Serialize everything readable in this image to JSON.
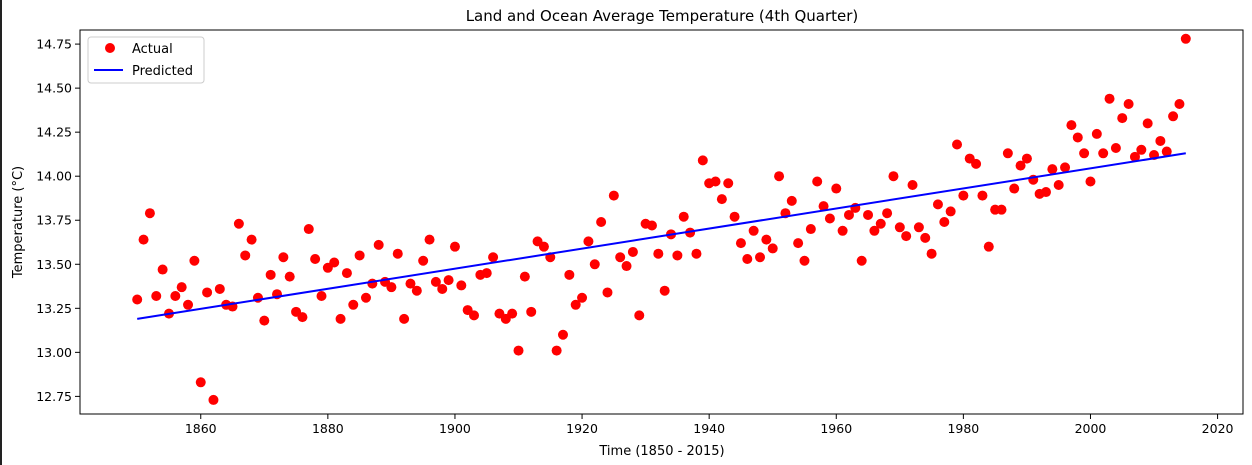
{
  "chart_data": {
    "type": "scatter",
    "title": "Land and Ocean Average Temperature (4th Quarter)",
    "xlabel": "Time (1850 - 2015)",
    "ylabel": "Temperature (°C)",
    "xlim": [
      1841,
      2024
    ],
    "ylim": [
      12.65,
      14.83
    ],
    "xticks": [
      1860,
      1880,
      1900,
      1920,
      1940,
      1960,
      1980,
      2000,
      2020
    ],
    "xtick_labels": [
      "1860",
      "1880",
      "1900",
      "1920",
      "1940",
      "1960",
      "1980",
      "2000",
      "2020"
    ],
    "yticks": [
      12.75,
      13.0,
      13.25,
      13.5,
      13.75,
      14.0,
      14.25,
      14.5,
      14.75
    ],
    "ytick_labels": [
      "12.75",
      "13.00",
      "13.25",
      "13.50",
      "13.75",
      "14.00",
      "14.25",
      "14.50",
      "14.75"
    ],
    "legend": {
      "position": "top-left",
      "entries": [
        "Actual",
        "Predicted"
      ]
    },
    "grid": false,
    "series": [
      {
        "name": "Actual",
        "kind": "scatter",
        "color": "#ff0000",
        "points": [
          [
            1850,
            13.3
          ],
          [
            1851,
            13.64
          ],
          [
            1852,
            13.79
          ],
          [
            1853,
            13.32
          ],
          [
            1854,
            13.47
          ],
          [
            1855,
            13.22
          ],
          [
            1856,
            13.32
          ],
          [
            1857,
            13.37
          ],
          [
            1858,
            13.27
          ],
          [
            1859,
            13.52
          ],
          [
            1860,
            12.83
          ],
          [
            1861,
            13.34
          ],
          [
            1862,
            12.73
          ],
          [
            1863,
            13.36
          ],
          [
            1864,
            13.27
          ],
          [
            1865,
            13.26
          ],
          [
            1866,
            13.73
          ],
          [
            1867,
            13.55
          ],
          [
            1868,
            13.64
          ],
          [
            1869,
            13.31
          ],
          [
            1870,
            13.18
          ],
          [
            1871,
            13.44
          ],
          [
            1872,
            13.33
          ],
          [
            1873,
            13.54
          ],
          [
            1874,
            13.43
          ],
          [
            1875,
            13.23
          ],
          [
            1876,
            13.2
          ],
          [
            1877,
            13.7
          ],
          [
            1878,
            13.53
          ],
          [
            1879,
            13.32
          ],
          [
            1880,
            13.48
          ],
          [
            1881,
            13.51
          ],
          [
            1882,
            13.19
          ],
          [
            1883,
            13.45
          ],
          [
            1884,
            13.27
          ],
          [
            1885,
            13.55
          ],
          [
            1886,
            13.31
          ],
          [
            1887,
            13.39
          ],
          [
            1888,
            13.61
          ],
          [
            1889,
            13.4
          ],
          [
            1890,
            13.37
          ],
          [
            1891,
            13.56
          ],
          [
            1892,
            13.19
          ],
          [
            1893,
            13.39
          ],
          [
            1894,
            13.35
          ],
          [
            1895,
            13.52
          ],
          [
            1896,
            13.64
          ],
          [
            1897,
            13.4
          ],
          [
            1898,
            13.36
          ],
          [
            1899,
            13.41
          ],
          [
            1900,
            13.6
          ],
          [
            1901,
            13.38
          ],
          [
            1902,
            13.24
          ],
          [
            1903,
            13.21
          ],
          [
            1904,
            13.44
          ],
          [
            1905,
            13.45
          ],
          [
            1906,
            13.54
          ],
          [
            1907,
            13.22
          ],
          [
            1908,
            13.19
          ],
          [
            1909,
            13.22
          ],
          [
            1910,
            13.01
          ],
          [
            1911,
            13.43
          ],
          [
            1912,
            13.23
          ],
          [
            1913,
            13.63
          ],
          [
            1914,
            13.6
          ],
          [
            1915,
            13.54
          ],
          [
            1916,
            13.01
          ],
          [
            1917,
            13.1
          ],
          [
            1918,
            13.44
          ],
          [
            1919,
            13.27
          ],
          [
            1920,
            13.31
          ],
          [
            1921,
            13.63
          ],
          [
            1922,
            13.5
          ],
          [
            1923,
            13.74
          ],
          [
            1924,
            13.34
          ],
          [
            1925,
            13.89
          ],
          [
            1926,
            13.54
          ],
          [
            1927,
            13.49
          ],
          [
            1928,
            13.57
          ],
          [
            1929,
            13.21
          ],
          [
            1930,
            13.73
          ],
          [
            1931,
            13.72
          ],
          [
            1932,
            13.56
          ],
          [
            1933,
            13.35
          ],
          [
            1934,
            13.67
          ],
          [
            1935,
            13.55
          ],
          [
            1936,
            13.77
          ],
          [
            1937,
            13.68
          ],
          [
            1938,
            13.56
          ],
          [
            1939,
            14.09
          ],
          [
            1940,
            13.96
          ],
          [
            1941,
            13.97
          ],
          [
            1942,
            13.87
          ],
          [
            1943,
            13.96
          ],
          [
            1944,
            13.77
          ],
          [
            1945,
            13.62
          ],
          [
            1946,
            13.53
          ],
          [
            1947,
            13.69
          ],
          [
            1948,
            13.54
          ],
          [
            1949,
            13.64
          ],
          [
            1950,
            13.59
          ],
          [
            1951,
            14.0
          ],
          [
            1952,
            13.79
          ],
          [
            1953,
            13.86
          ],
          [
            1954,
            13.62
          ],
          [
            1955,
            13.52
          ],
          [
            1956,
            13.7
          ],
          [
            1957,
            13.97
          ],
          [
            1958,
            13.83
          ],
          [
            1959,
            13.76
          ],
          [
            1960,
            13.93
          ],
          [
            1961,
            13.69
          ],
          [
            1962,
            13.78
          ],
          [
            1963,
            13.82
          ],
          [
            1964,
            13.52
          ],
          [
            1965,
            13.78
          ],
          [
            1966,
            13.69
          ],
          [
            1967,
            13.73
          ],
          [
            1968,
            13.79
          ],
          [
            1969,
            14.0
          ],
          [
            1970,
            13.71
          ],
          [
            1971,
            13.66
          ],
          [
            1972,
            13.95
          ],
          [
            1973,
            13.71
          ],
          [
            1974,
            13.65
          ],
          [
            1975,
            13.56
          ],
          [
            1976,
            13.84
          ],
          [
            1977,
            13.74
          ],
          [
            1978,
            13.8
          ],
          [
            1979,
            14.18
          ],
          [
            1980,
            13.89
          ],
          [
            1981,
            14.1
          ],
          [
            1982,
            14.07
          ],
          [
            1983,
            13.89
          ],
          [
            1984,
            13.6
          ],
          [
            1985,
            13.81
          ],
          [
            1986,
            13.81
          ],
          [
            1987,
            14.13
          ],
          [
            1988,
            13.93
          ],
          [
            1989,
            14.06
          ],
          [
            1990,
            14.1
          ],
          [
            1991,
            13.98
          ],
          [
            1992,
            13.9
          ],
          [
            1993,
            13.91
          ],
          [
            1994,
            14.04
          ],
          [
            1995,
            13.95
          ],
          [
            1996,
            14.05
          ],
          [
            1997,
            14.29
          ],
          [
            1998,
            14.22
          ],
          [
            1999,
            14.13
          ],
          [
            2000,
            13.97
          ],
          [
            2001,
            14.24
          ],
          [
            2002,
            14.13
          ],
          [
            2003,
            14.44
          ],
          [
            2004,
            14.16
          ],
          [
            2005,
            14.33
          ],
          [
            2006,
            14.41
          ],
          [
            2007,
            14.11
          ],
          [
            2008,
            14.15
          ],
          [
            2009,
            14.3
          ],
          [
            2010,
            14.12
          ],
          [
            2011,
            14.2
          ],
          [
            2012,
            14.14
          ],
          [
            2013,
            14.34
          ],
          [
            2014,
            14.41
          ],
          [
            2015,
            14.78
          ]
        ]
      },
      {
        "name": "Predicted",
        "kind": "line",
        "color": "#0000ff",
        "points": [
          [
            1850,
            13.19
          ],
          [
            2015,
            14.13
          ]
        ]
      }
    ]
  }
}
